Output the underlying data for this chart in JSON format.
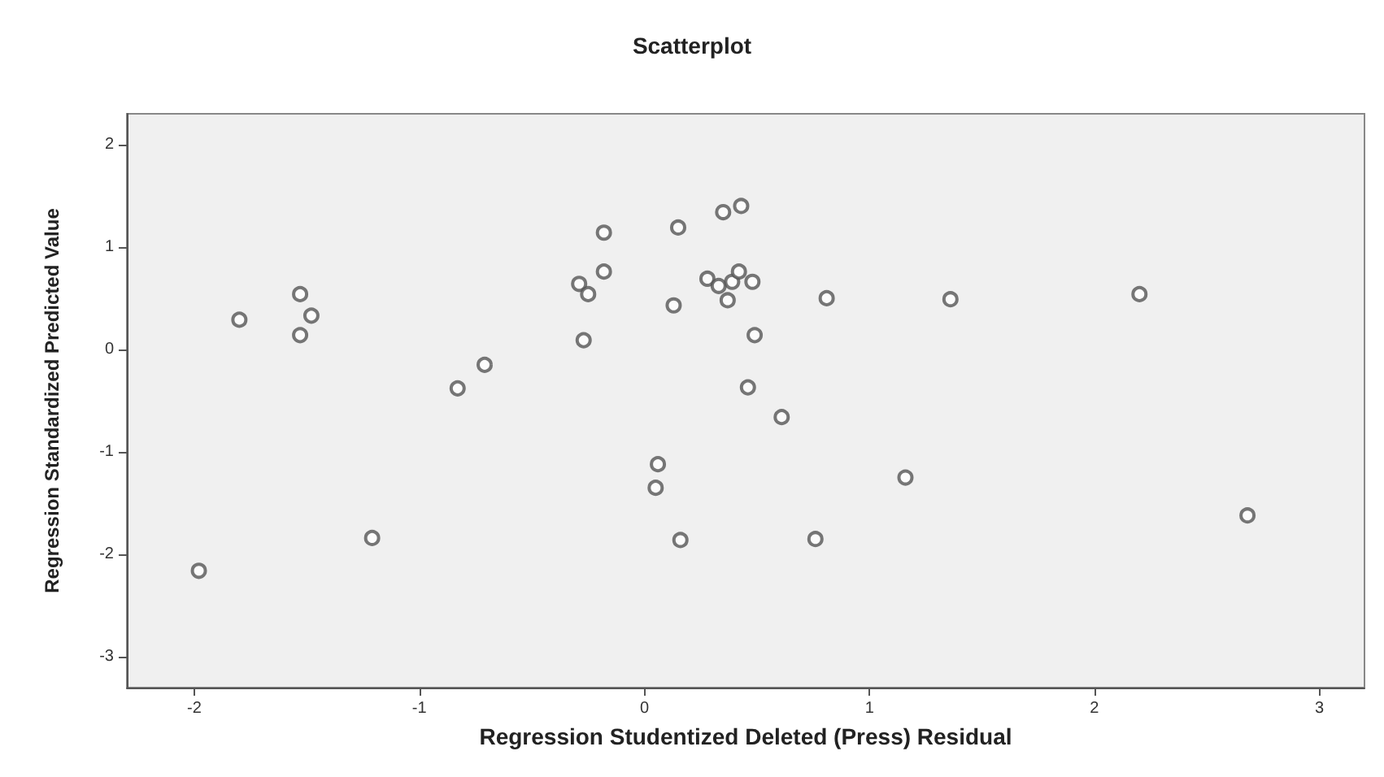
{
  "chart_data": {
    "type": "scatter",
    "title": "Scatterplot",
    "xlabel": "Regression Studentized Deleted (Press) Residual",
    "ylabel": "Regression Standardized Predicted Value",
    "xlim": [
      -2.3,
      3.2
    ],
    "ylim": [
      -3.3,
      2.3
    ],
    "xticks": [
      -2,
      -1,
      0,
      1,
      2,
      3
    ],
    "yticks": [
      -3,
      -2,
      -1,
      0,
      1,
      2
    ],
    "grid": false,
    "marker": "circle",
    "series": [
      {
        "color": "#555555",
        "x": [
          -1.98,
          -1.8,
          -1.53,
          -1.48,
          -1.53,
          -1.21,
          -0.83,
          -0.71,
          -0.29,
          -0.25,
          -0.27,
          -0.18,
          -0.18,
          0.15,
          0.13,
          0.35,
          0.43,
          0.28,
          0.33,
          0.39,
          0.42,
          0.37,
          0.06,
          0.05,
          0.16,
          0.48,
          0.49,
          0.46,
          0.61,
          0.81,
          0.76,
          1.16,
          1.36,
          2.2,
          2.68
        ],
        "values": [
          -2.16,
          0.29,
          0.54,
          0.33,
          0.14,
          -1.84,
          -0.38,
          -0.15,
          0.64,
          0.54,
          0.09,
          0.76,
          1.14,
          1.19,
          0.43,
          1.34,
          1.4,
          0.69,
          0.62,
          0.66,
          0.76,
          0.48,
          -1.12,
          -1.35,
          -1.86,
          0.66,
          0.14,
          -0.37,
          -0.66,
          0.5,
          -1.85,
          -1.25,
          0.49,
          0.54,
          -1.62
        ]
      }
    ]
  }
}
